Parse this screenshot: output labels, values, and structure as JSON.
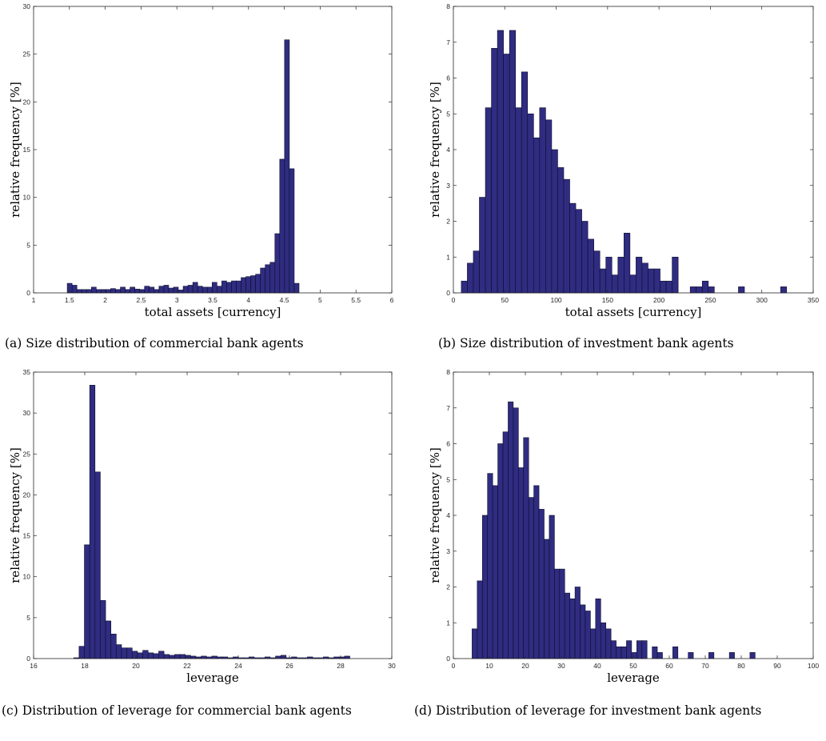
{
  "chart_data": [
    {
      "type": "bar",
      "xlabel": "total assets [currency]",
      "ylabel": "relative frequency [%]",
      "xlim": [
        1,
        6
      ],
      "ylim": [
        0,
        30
      ],
      "xticks": [
        1,
        1.5,
        2,
        2.5,
        3,
        3.5,
        4,
        4.5,
        5,
        5.5,
        6
      ],
      "yticks": [
        0,
        5,
        10,
        15,
        20,
        25,
        30
      ],
      "xticklabels": [
        "1",
        "1.5",
        "2",
        "2.5",
        "3",
        "3.5",
        "4",
        "4.5",
        "5",
        "5.5",
        "6"
      ],
      "yticklabels": [
        "0",
        "5",
        "10",
        "15",
        "20",
        "25",
        "30"
      ],
      "bin_start": 1.47,
      "bin_width": 0.0674,
      "values": [
        1.0,
        0.8,
        0.35,
        0.35,
        0.35,
        0.6,
        0.35,
        0.35,
        0.35,
        0.45,
        0.35,
        0.6,
        0.35,
        0.6,
        0.4,
        0.35,
        0.7,
        0.6,
        0.35,
        0.7,
        0.8,
        0.5,
        0.6,
        0.3,
        0.7,
        0.8,
        1.1,
        0.7,
        0.6,
        0.6,
        1.1,
        0.7,
        1.25,
        1.1,
        1.25,
        1.25,
        1.6,
        1.7,
        1.8,
        1.95,
        2.6,
        2.95,
        3.2,
        6.2,
        14.0,
        26.5,
        13.0,
        1.0
      ],
      "caption": "(a) Size distribution of commercial bank agents"
    },
    {
      "type": "bar",
      "xlabel": "total assets [currency]",
      "ylabel": "relative frequency [%]",
      "xlim": [
        0,
        350
      ],
      "ylim": [
        0,
        8
      ],
      "xticks": [
        0,
        50,
        100,
        150,
        200,
        250,
        300,
        350
      ],
      "yticks": [
        0,
        1,
        2,
        3,
        4,
        5,
        6,
        7,
        8
      ],
      "xticklabels": [
        "0",
        "50",
        "100",
        "150",
        "200",
        "250",
        "300",
        "350"
      ],
      "yticklabels": [
        "0",
        "1",
        "2",
        "3",
        "4",
        "5",
        "6",
        "7",
        "8"
      ],
      "bin_start": 7.7,
      "bin_width": 5.86,
      "values": [
        0.33,
        0.83,
        1.17,
        2.67,
        5.17,
        6.83,
        7.33,
        6.67,
        7.33,
        5.17,
        6.17,
        5.0,
        4.33,
        5.17,
        4.83,
        4.0,
        3.5,
        3.17,
        2.5,
        2.33,
        2.0,
        1.5,
        1.17,
        0.67,
        1.0,
        0.5,
        1.0,
        1.67,
        0.5,
        1.0,
        0.83,
        0.67,
        0.67,
        0.33,
        0.33,
        1.0,
        0,
        0,
        0.17,
        0.17,
        0.33,
        0.17,
        0,
        0,
        0,
        0,
        0.17,
        0,
        0,
        0,
        0,
        0,
        0,
        0.17
      ],
      "caption": "(b) Size distribution of investment bank agents"
    },
    {
      "type": "bar",
      "xlabel": "leverage",
      "ylabel": "relative frequency [%]",
      "xlim": [
        16,
        30
      ],
      "ylim": [
        0,
        35
      ],
      "xticks": [
        16,
        18,
        20,
        22,
        24,
        26,
        28,
        30
      ],
      "yticks": [
        0,
        5,
        10,
        15,
        20,
        25,
        30,
        35
      ],
      "xticklabels": [
        "16",
        "18",
        "20",
        "22",
        "24",
        "26",
        "28",
        "30"
      ],
      "yticklabels": [
        "0",
        "5",
        "10",
        "15",
        "20",
        "25",
        "30",
        "35"
      ],
      "bin_start": 17.57,
      "bin_width": 0.2075,
      "values": [
        0.1,
        1.5,
        13.9,
        33.4,
        22.8,
        7.1,
        4.6,
        3.0,
        1.7,
        1.3,
        1.3,
        0.9,
        0.7,
        1.0,
        0.7,
        0.6,
        0.9,
        0.5,
        0.4,
        0.5,
        0.5,
        0.4,
        0.3,
        0.2,
        0.3,
        0.2,
        0.3,
        0.2,
        0.2,
        0.1,
        0.2,
        0.1,
        0.1,
        0.2,
        0.1,
        0.1,
        0.2,
        0.1,
        0.3,
        0.4,
        0.1,
        0.2,
        0.1,
        0.1,
        0.2,
        0.1,
        0.1,
        0.2,
        0.1,
        0.2,
        0.2,
        0.3
      ],
      "caption": "(c) Distribution of leverage for commercial bank agents"
    },
    {
      "type": "bar",
      "xlabel": "leverage",
      "ylabel": "relative frequency [%]",
      "xlim": [
        0,
        100
      ],
      "ylim": [
        0,
        8
      ],
      "xticks": [
        0,
        10,
        20,
        30,
        40,
        50,
        60,
        70,
        80,
        90,
        100
      ],
      "yticks": [
        0,
        1,
        2,
        3,
        4,
        5,
        6,
        7,
        8
      ],
      "xticklabels": [
        "0",
        "10",
        "20",
        "30",
        "40",
        "50",
        "60",
        "70",
        "80",
        "90",
        "100"
      ],
      "yticklabels": [
        "0",
        "1",
        "2",
        "3",
        "4",
        "5",
        "6",
        "7",
        "8"
      ],
      "bin_start": 5.2,
      "bin_width": 1.43,
      "values": [
        0.83,
        2.17,
        4.0,
        5.17,
        4.83,
        6.0,
        6.33,
        7.17,
        7.0,
        5.33,
        6.17,
        4.5,
        4.83,
        4.17,
        3.33,
        4.0,
        2.5,
        2.5,
        1.83,
        1.67,
        2.0,
        1.5,
        1.33,
        0.83,
        1.67,
        1.0,
        0.83,
        0.5,
        0.33,
        0.33,
        0.5,
        0.17,
        0.5,
        0.5,
        0,
        0.33,
        0.17,
        0,
        0,
        0.33,
        0,
        0,
        0.17,
        0,
        0,
        0,
        0.17,
        0,
        0,
        0,
        0.17,
        0,
        0,
        0,
        0.17
      ],
      "caption": "(d) Distribution of leverage for investment bank agents"
    }
  ],
  "colors": {
    "bar_fill": "#2f2c81",
    "bar_edge": "#0d0d2a",
    "axis": "#262626"
  }
}
